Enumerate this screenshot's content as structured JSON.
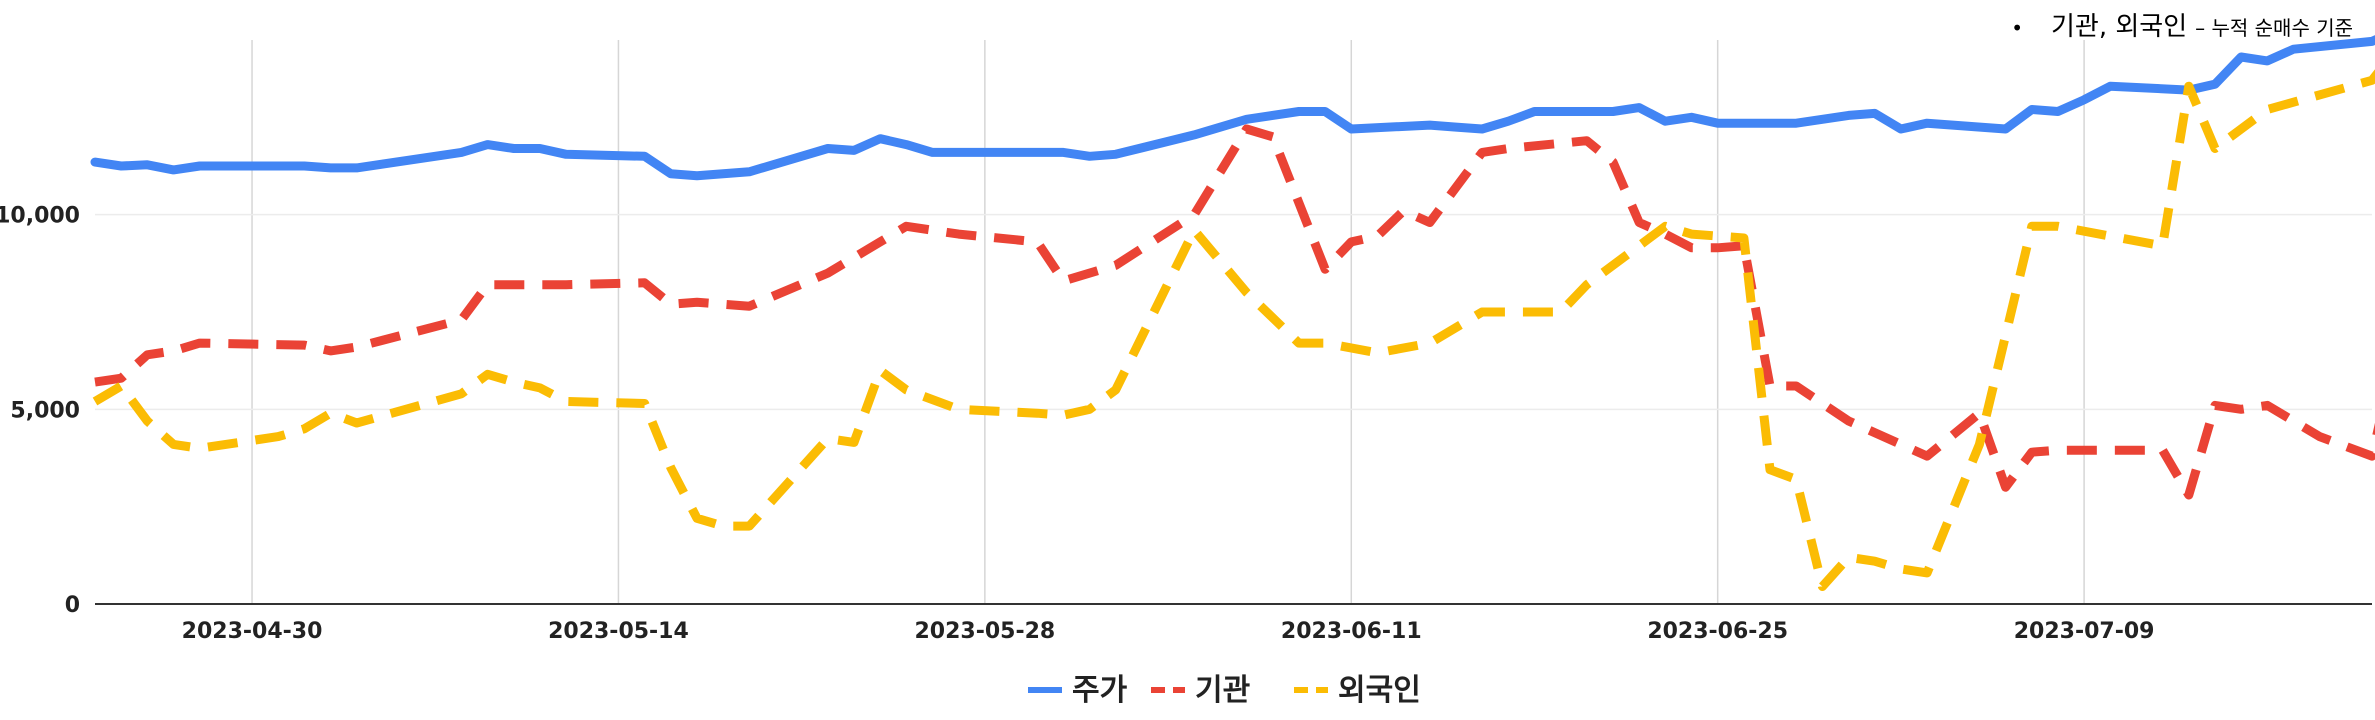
{
  "note": {
    "bullet": "•",
    "title": "기관, 외국인",
    "subtitle": "– 누적 순매수 기준"
  },
  "chart_data": {
    "type": "line",
    "x_start": "2023-04-24",
    "x_end": "2023-07-20",
    "ylim": [
      0,
      15000
    ],
    "yticks": [
      0,
      5000,
      10000
    ],
    "ytick_labels": [
      "0",
      "5,000",
      "10,000"
    ],
    "xticks": [
      "2023-04-30",
      "2023-05-14",
      "2023-05-28",
      "2023-06-11",
      "2023-06-25",
      "2023-07-09"
    ],
    "grid": true,
    "legend_position": "bottom",
    "series": [
      {
        "name": "주가",
        "color": "#4285F4",
        "dash": false,
        "points": [
          [
            "2023-04-24",
            11350
          ],
          [
            "2023-04-25",
            11250
          ],
          [
            "2023-04-26",
            11280
          ],
          [
            "2023-04-27",
            11150
          ],
          [
            "2023-04-28",
            11250
          ],
          [
            "2023-05-02",
            11250
          ],
          [
            "2023-05-03",
            11200
          ],
          [
            "2023-05-04",
            11200
          ],
          [
            "2023-05-08",
            11600
          ],
          [
            "2023-05-09",
            11800
          ],
          [
            "2023-05-10",
            11700
          ],
          [
            "2023-05-11",
            11700
          ],
          [
            "2023-05-12",
            11550
          ],
          [
            "2023-05-15",
            11500
          ],
          [
            "2023-05-16",
            11050
          ],
          [
            "2023-05-17",
            11000
          ],
          [
            "2023-05-19",
            11100
          ],
          [
            "2023-05-22",
            11700
          ],
          [
            "2023-05-23",
            11650
          ],
          [
            "2023-05-24",
            11950
          ],
          [
            "2023-05-25",
            11800
          ],
          [
            "2023-05-26",
            11600
          ],
          [
            "2023-05-30",
            11600
          ],
          [
            "2023-05-31",
            11600
          ],
          [
            "2023-06-01",
            11500
          ],
          [
            "2023-06-02",
            11550
          ],
          [
            "2023-06-05",
            12050
          ],
          [
            "2023-06-07",
            12450
          ],
          [
            "2023-06-09",
            12650
          ],
          [
            "2023-06-10",
            12650
          ],
          [
            "2023-06-11",
            12200
          ],
          [
            "2023-06-14",
            12300
          ],
          [
            "2023-06-15",
            12250
          ],
          [
            "2023-06-16",
            12200
          ],
          [
            "2023-06-17",
            12400
          ],
          [
            "2023-06-18",
            12650
          ],
          [
            "2023-06-20",
            12650
          ],
          [
            "2023-06-21",
            12650
          ],
          [
            "2023-06-22",
            12750
          ],
          [
            "2023-06-23",
            12400
          ],
          [
            "2023-06-24",
            12500
          ],
          [
            "2023-06-25",
            12350
          ],
          [
            "2023-06-27",
            12350
          ],
          [
            "2023-06-28",
            12350
          ],
          [
            "2023-06-30",
            12550
          ],
          [
            "2023-07-01",
            12600
          ],
          [
            "2023-07-02",
            12200
          ],
          [
            "2023-07-03",
            12350
          ],
          [
            "2023-07-06",
            12200
          ],
          [
            "2023-07-07",
            12700
          ],
          [
            "2023-07-08",
            12650
          ],
          [
            "2023-07-09",
            12950
          ],
          [
            "2023-07-10",
            13300
          ],
          [
            "2023-07-13",
            13200
          ],
          [
            "2023-07-14",
            13350
          ],
          [
            "2023-07-15",
            14050
          ],
          [
            "2023-07-16",
            13950
          ],
          [
            "2023-07-17",
            14250
          ],
          [
            "2023-07-20",
            14450
          ],
          [
            "2023-07-21",
            14750
          ]
        ]
      },
      {
        "name": "기관",
        "color": "#EA4335",
        "dash": true,
        "points": [
          [
            "2023-04-24",
            5700
          ],
          [
            "2023-04-25",
            5800
          ],
          [
            "2023-04-26",
            6400
          ],
          [
            "2023-04-27",
            6500
          ],
          [
            "2023-04-28",
            6700
          ],
          [
            "2023-05-02",
            6650
          ],
          [
            "2023-05-03",
            6500
          ],
          [
            "2023-05-04",
            6600
          ],
          [
            "2023-05-08",
            7300
          ],
          [
            "2023-05-09",
            8200
          ],
          [
            "2023-05-10",
            8200
          ],
          [
            "2023-05-12",
            8200
          ],
          [
            "2023-05-15",
            8250
          ],
          [
            "2023-05-16",
            7700
          ],
          [
            "2023-05-17",
            7750
          ],
          [
            "2023-05-19",
            7650
          ],
          [
            "2023-05-22",
            8500
          ],
          [
            "2023-05-24",
            9300
          ],
          [
            "2023-05-25",
            9700
          ],
          [
            "2023-05-27",
            9500
          ],
          [
            "2023-05-30",
            9300
          ],
          [
            "2023-05-31",
            8300
          ],
          [
            "2023-06-02",
            8700
          ],
          [
            "2023-06-05",
            10000
          ],
          [
            "2023-06-07",
            12200
          ],
          [
            "2023-06-08",
            12000
          ],
          [
            "2023-06-10",
            8600
          ],
          [
            "2023-06-11",
            9300
          ],
          [
            "2023-06-12",
            9450
          ],
          [
            "2023-06-13",
            10100
          ],
          [
            "2023-06-14",
            9800
          ],
          [
            "2023-06-16",
            11600
          ],
          [
            "2023-06-17",
            11700
          ],
          [
            "2023-06-20",
            11900
          ],
          [
            "2023-06-21",
            11350
          ],
          [
            "2023-06-22",
            9800
          ],
          [
            "2023-06-23",
            9500
          ],
          [
            "2023-06-24",
            9150
          ],
          [
            "2023-06-25",
            9150
          ],
          [
            "2023-06-26",
            9200
          ],
          [
            "2023-06-27",
            5600
          ],
          [
            "2023-06-28",
            5600
          ],
          [
            "2023-06-30",
            4700
          ],
          [
            "2023-07-02",
            4100
          ],
          [
            "2023-07-03",
            3800
          ],
          [
            "2023-07-05",
            4900
          ],
          [
            "2023-07-06",
            3000
          ],
          [
            "2023-07-07",
            3900
          ],
          [
            "2023-07-08",
            3950
          ],
          [
            "2023-07-10",
            3950
          ],
          [
            "2023-07-11",
            3950
          ],
          [
            "2023-07-12",
            3950
          ],
          [
            "2023-07-13",
            2800
          ],
          [
            "2023-07-14",
            5100
          ],
          [
            "2023-07-15",
            5000
          ],
          [
            "2023-07-16",
            5100
          ],
          [
            "2023-07-18",
            4300
          ],
          [
            "2023-07-20",
            3800
          ],
          [
            "2023-07-21",
            6750
          ]
        ]
      },
      {
        "name": "외국인",
        "color": "#FBBC04",
        "dash": true,
        "points": [
          [
            "2023-04-24",
            5200
          ],
          [
            "2023-04-25",
            5600
          ],
          [
            "2023-04-26",
            4700
          ],
          [
            "2023-04-27",
            4100
          ],
          [
            "2023-04-28",
            4000
          ],
          [
            "2023-05-01",
            4300
          ],
          [
            "2023-05-02",
            4500
          ],
          [
            "2023-05-03",
            4900
          ],
          [
            "2023-05-04",
            4650
          ],
          [
            "2023-05-08",
            5400
          ],
          [
            "2023-05-09",
            5900
          ],
          [
            "2023-05-10",
            5700
          ],
          [
            "2023-05-11",
            5550
          ],
          [
            "2023-05-12",
            5200
          ],
          [
            "2023-05-15",
            5150
          ],
          [
            "2023-05-16",
            3500
          ],
          [
            "2023-05-17",
            2200
          ],
          [
            "2023-05-18",
            2000
          ],
          [
            "2023-05-19",
            2000
          ],
          [
            "2023-05-22",
            4250
          ],
          [
            "2023-05-23",
            4150
          ],
          [
            "2023-05-24",
            6000
          ],
          [
            "2023-05-25",
            5500
          ],
          [
            "2023-05-27",
            5000
          ],
          [
            "2023-05-30",
            4900
          ],
          [
            "2023-05-31",
            4850
          ],
          [
            "2023-06-01",
            5000
          ],
          [
            "2023-06-02",
            5500
          ],
          [
            "2023-06-05",
            9600
          ],
          [
            "2023-06-07",
            8000
          ],
          [
            "2023-06-09",
            6700
          ],
          [
            "2023-06-10",
            6700
          ],
          [
            "2023-06-12",
            6450
          ],
          [
            "2023-06-14",
            6700
          ],
          [
            "2023-06-16",
            7500
          ],
          [
            "2023-06-17",
            7500
          ],
          [
            "2023-06-19",
            7500
          ],
          [
            "2023-06-20",
            8200
          ],
          [
            "2023-06-23",
            9700
          ],
          [
            "2023-06-24",
            9500
          ],
          [
            "2023-06-26",
            9400
          ],
          [
            "2023-06-27",
            3450
          ],
          [
            "2023-06-28",
            3200
          ],
          [
            "2023-06-29",
            450
          ],
          [
            "2023-06-30",
            1200
          ],
          [
            "2023-07-01",
            1100
          ],
          [
            "2023-07-02",
            900
          ],
          [
            "2023-07-03",
            800
          ],
          [
            "2023-07-05",
            4100
          ],
          [
            "2023-07-07",
            9700
          ],
          [
            "2023-07-08",
            9700
          ],
          [
            "2023-07-10",
            9450
          ],
          [
            "2023-07-12",
            9200
          ],
          [
            "2023-07-13",
            13300
          ],
          [
            "2023-07-14",
            11700
          ],
          [
            "2023-07-16",
            12700
          ],
          [
            "2023-07-20",
            13450
          ],
          [
            "2023-07-21",
            14300
          ]
        ]
      }
    ]
  }
}
